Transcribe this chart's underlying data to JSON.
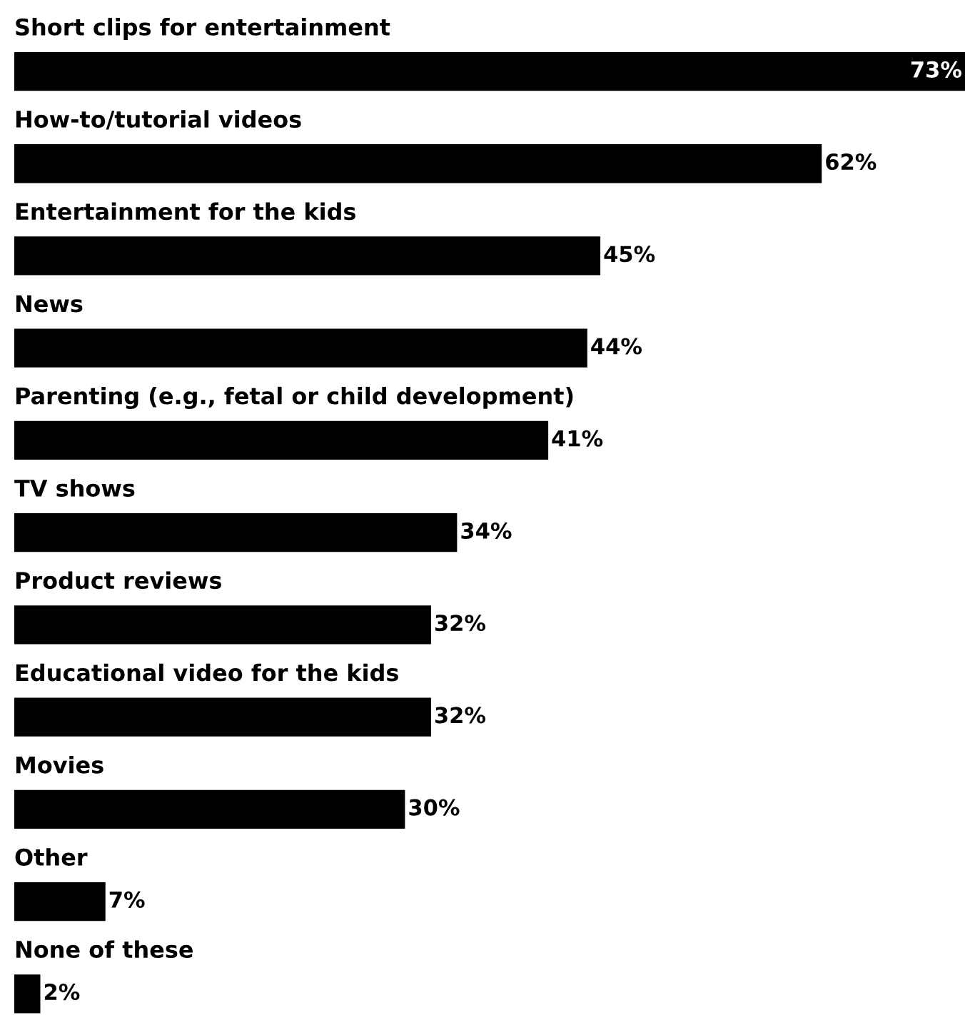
{
  "chart_data": {
    "type": "bar",
    "orientation": "horizontal",
    "categories": [
      "Short clips for entertainment",
      "How-to/tutorial videos",
      "Entertainment for the kids",
      "News",
      "Parenting (e.g., fetal or child development)",
      "TV shows",
      "Product reviews",
      "Educational video for the kids",
      "Movies",
      "Other",
      "None of these"
    ],
    "values": [
      73,
      62,
      45,
      44,
      41,
      34,
      32,
      32,
      30,
      7,
      2
    ],
    "value_labels": [
      "73%",
      "62%",
      "45%",
      "44%",
      "41%",
      "34%",
      "32%",
      "32%",
      "30%",
      "7%",
      "2%"
    ],
    "color": "#000000"
  }
}
